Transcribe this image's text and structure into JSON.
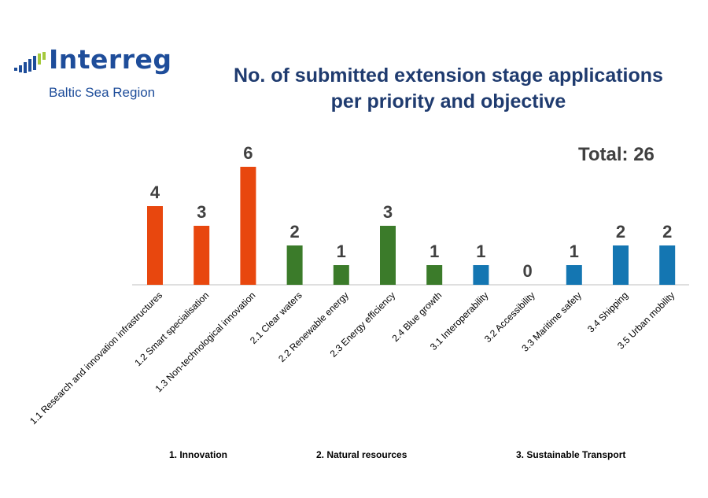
{
  "logo": {
    "name": "Interreg",
    "region": "Baltic Sea Region"
  },
  "title_line1": "No. of submitted extension stage applications",
  "title_line2": "per priority and objective",
  "total_text": "Total: 26",
  "groups": [
    "1. Innovation",
    "2. Natural resources",
    "3. Sustainable Transport"
  ],
  "colors": {
    "innovation": "#e8470e",
    "natural_resources": "#3b7b2a",
    "transport": "#1476b2",
    "title": "#1f3b6f",
    "logo_blue": "#1e4d9a",
    "logo_green": "#a5c93c"
  },
  "chart_data": {
    "type": "bar",
    "title": "No. of submitted extension stage applications per priority and objective",
    "categories": [
      "1.1 Research and innovation infrastructures",
      "1.2 Smart specialisation",
      "1.3 Non-technological innovation",
      "2.1 Clear waters",
      "2.2 Renewable energy",
      "2.3 Energy efficiency",
      "2.4 Blue growth",
      "3.1 Interoperability",
      "3.2 Accessibility",
      "3.3 Maritime safety",
      "3.4 Shipping",
      "3.5 Urban mobility"
    ],
    "values": [
      4,
      3,
      6,
      2,
      1,
      3,
      1,
      1,
      0,
      1,
      2,
      2
    ],
    "groups_of_categories": [
      "innovation",
      "innovation",
      "innovation",
      "natural_resources",
      "natural_resources",
      "natural_resources",
      "natural_resources",
      "transport",
      "transport",
      "transport",
      "transport",
      "transport"
    ],
    "ylim": [
      0,
      6
    ],
    "grid": false,
    "data_labels": true
  }
}
